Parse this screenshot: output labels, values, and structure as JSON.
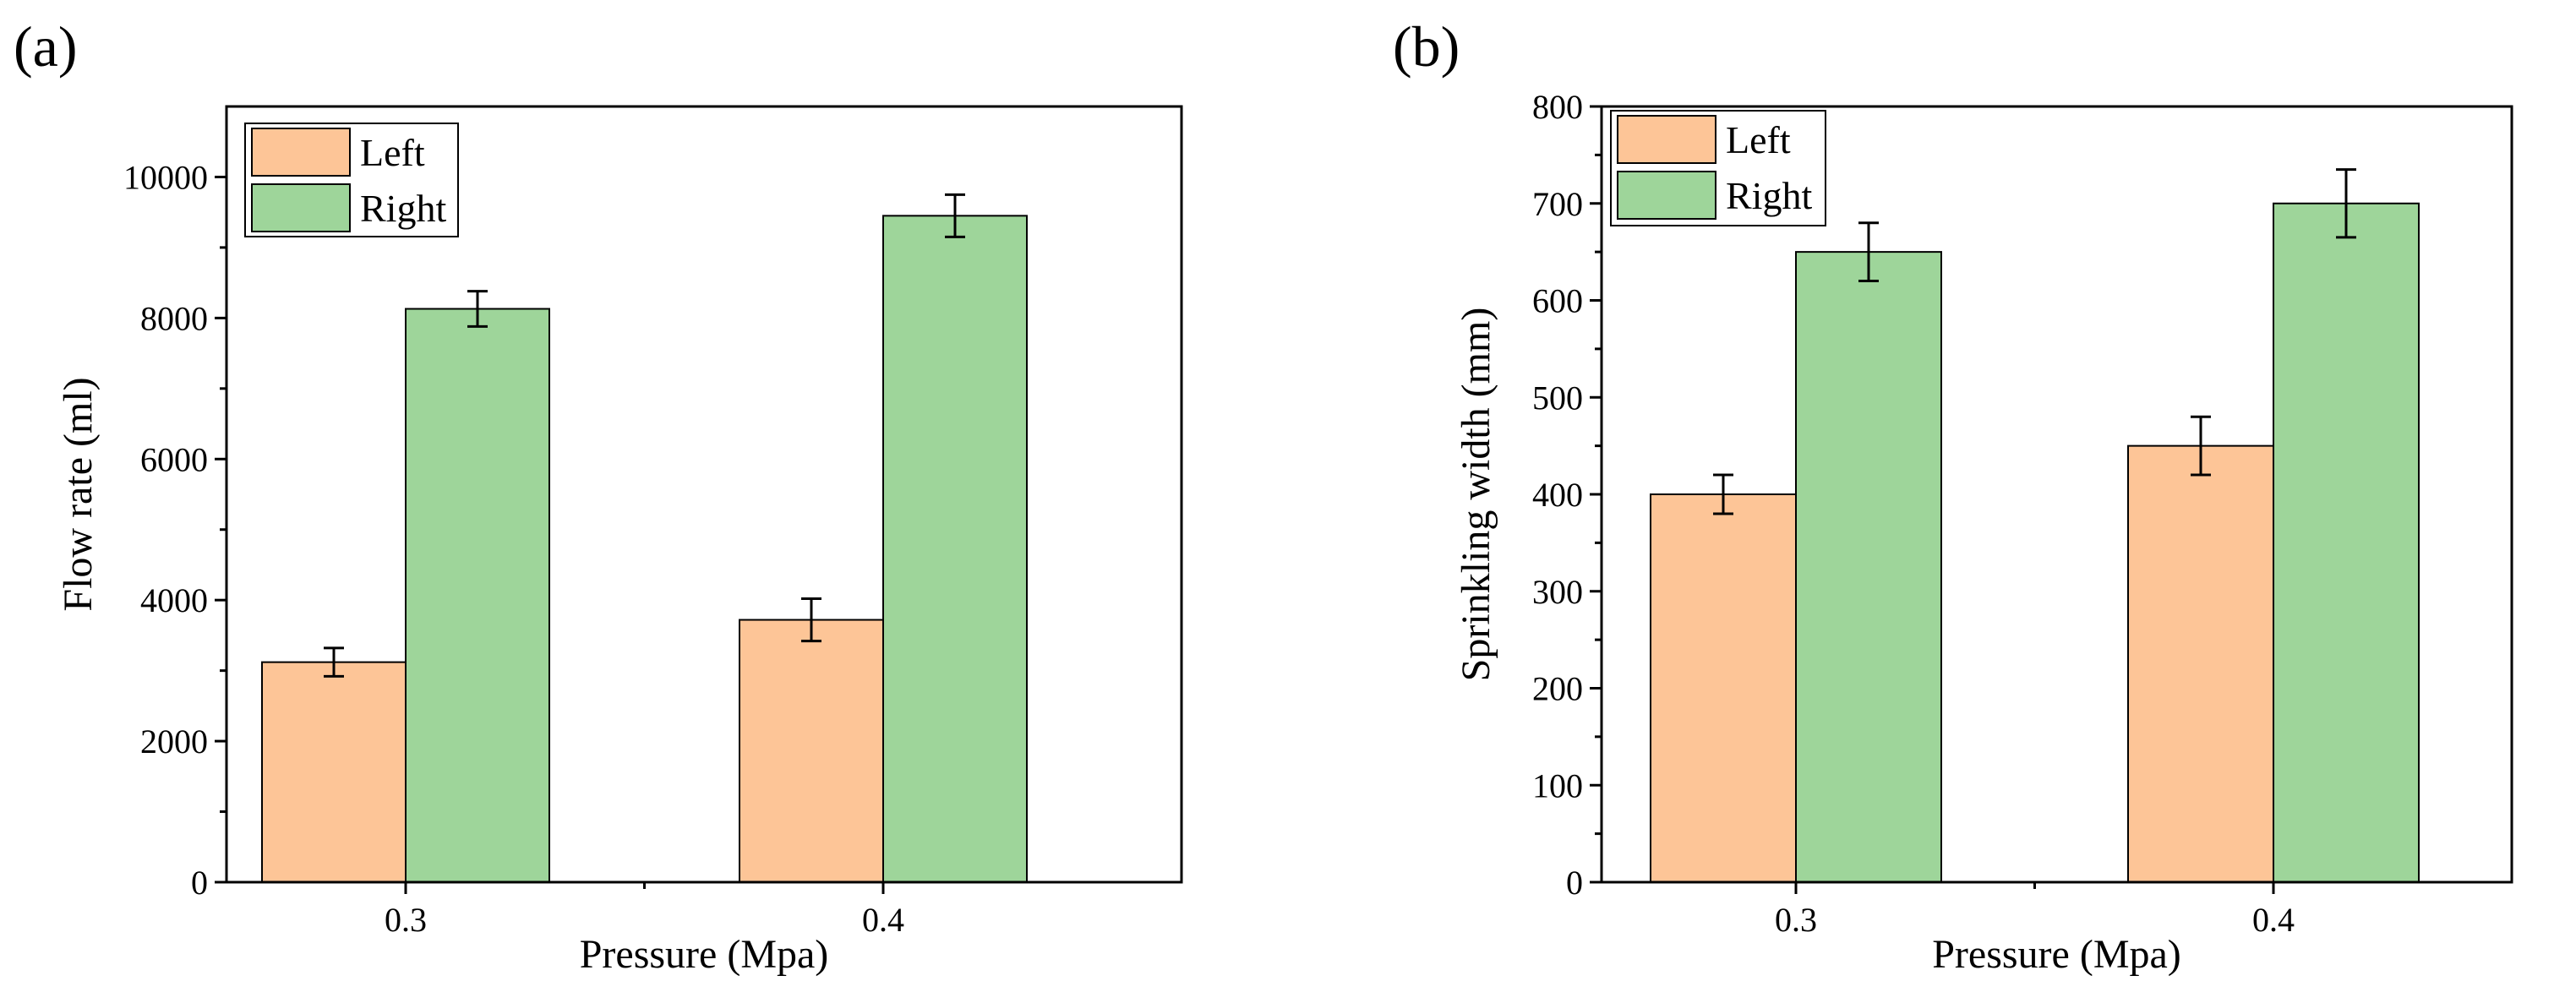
{
  "chart_data": [
    {
      "panel": "(a)",
      "type": "bar",
      "title": "",
      "xlabel": "Pressure (Mpa)",
      "ylabel": "Flow rate (ml)",
      "categories": [
        "0.3",
        "0.4"
      ],
      "ylim": [
        0,
        11000
      ],
      "yticks": [
        0,
        2000,
        4000,
        6000,
        8000,
        10000
      ],
      "yticks_labels": [
        "0",
        "2000",
        "4000",
        "6000",
        "8000",
        "10000"
      ],
      "grid": false,
      "legend_position": "top-left",
      "series": [
        {
          "name": "Left",
          "color": "#FDC597",
          "values": [
            3120,
            3720
          ],
          "errors": [
            200,
            300
          ]
        },
        {
          "name": "Right",
          "color": "#9ED59A",
          "values": [
            8130,
            9450
          ],
          "errors": [
            250,
            300
          ]
        }
      ]
    },
    {
      "panel": "(b)",
      "type": "bar",
      "title": "",
      "xlabel": "Pressure (Mpa)",
      "ylabel": "Sprinkling width (mm)",
      "categories": [
        "0.3",
        "0.4"
      ],
      "ylim": [
        0,
        800
      ],
      "yticks": [
        0,
        100,
        200,
        300,
        400,
        500,
        600,
        700,
        800
      ],
      "yticks_labels": [
        "0",
        "100",
        "200",
        "300",
        "400",
        "500",
        "600",
        "700",
        "800"
      ],
      "grid": false,
      "legend_position": "top-left",
      "series": [
        {
          "name": "Left",
          "color": "#FDC597",
          "values": [
            400,
            450
          ],
          "errors": [
            20,
            30
          ]
        },
        {
          "name": "Right",
          "color": "#9ED59A",
          "values": [
            650,
            700
          ],
          "errors": [
            30,
            35
          ]
        }
      ]
    }
  ]
}
